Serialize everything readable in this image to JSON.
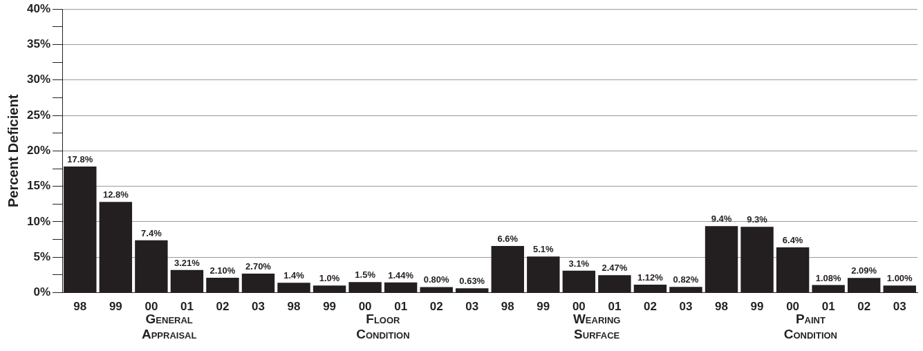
{
  "chart_data": {
    "type": "bar",
    "ylabel": "Percent Deficient",
    "categories": [
      "98",
      "99",
      "00",
      "01",
      "02",
      "03",
      "98",
      "99",
      "00",
      "01",
      "02",
      "03",
      "98",
      "99",
      "00",
      "01",
      "02",
      "03",
      "98",
      "99",
      "00",
      "01",
      "02",
      "03"
    ],
    "values": [
      17.8,
      12.8,
      7.4,
      3.21,
      2.1,
      2.7,
      1.4,
      1.0,
      1.5,
      1.44,
      0.8,
      0.63,
      6.6,
      5.1,
      3.1,
      2.47,
      1.12,
      0.82,
      9.4,
      9.3,
      6.4,
      1.08,
      2.09,
      1.0
    ],
    "value_labels": [
      "17.8%",
      "12.8%",
      "7.4%",
      "3.21%",
      "2.10%",
      "2.70%",
      "1.4%",
      "1.0%",
      "1.5%",
      "1.44%",
      "0.80%",
      "0.63%",
      "6.6%",
      "5.1%",
      "3.1%",
      "2.47%",
      "1.12%",
      "0.82%",
      "9.4%",
      "9.3%",
      "6.4%",
      "1.08%",
      "2.09%",
      "1.00%"
    ],
    "color": "#231f20",
    "ylim": [
      0,
      40
    ],
    "yticks": [
      {
        "value": 0,
        "label": "0%"
      },
      {
        "value": 2.5,
        "label": null
      },
      {
        "value": 5,
        "label": "5%"
      },
      {
        "value": 7.5,
        "label": null
      },
      {
        "value": 10,
        "label": "10%"
      },
      {
        "value": 12.5,
        "label": null
      },
      {
        "value": 15,
        "label": "15%"
      },
      {
        "value": 17.5,
        "label": null
      },
      {
        "value": 20,
        "label": "20%"
      },
      {
        "value": 22.5,
        "label": null
      },
      {
        "value": 25,
        "label": "25%"
      },
      {
        "value": 27.5,
        "label": null
      },
      {
        "value": 30,
        "label": "30%"
      },
      {
        "value": 32.5,
        "label": null
      },
      {
        "value": 35,
        "label": "35%"
      },
      {
        "value": 37.5,
        "label": null
      },
      {
        "value": 40,
        "label": "40%"
      }
    ],
    "grid": "y",
    "legend": false,
    "annotations": [
      "General Appraisal",
      "Floor Condition",
      "Wearing Surface",
      "Paint Condition"
    ]
  }
}
